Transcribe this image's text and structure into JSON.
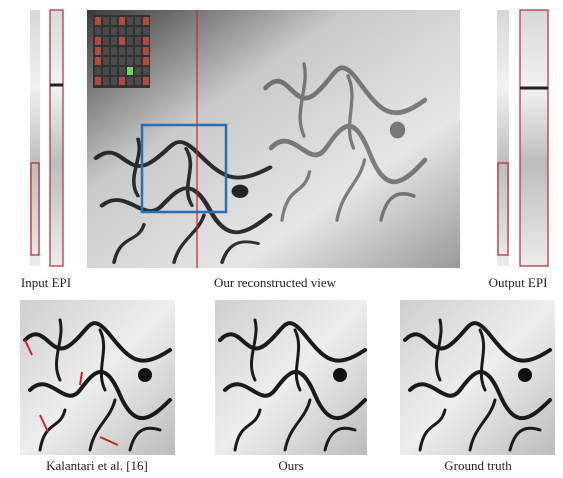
{
  "top_row": {
    "left_label": "Input EPI",
    "center_label": "Our reconstructed view",
    "right_label": "Output EPI"
  },
  "bottom_row": {
    "labels": [
      "Kalantari et al. [16]",
      "Ours",
      "Ground truth"
    ]
  }
}
